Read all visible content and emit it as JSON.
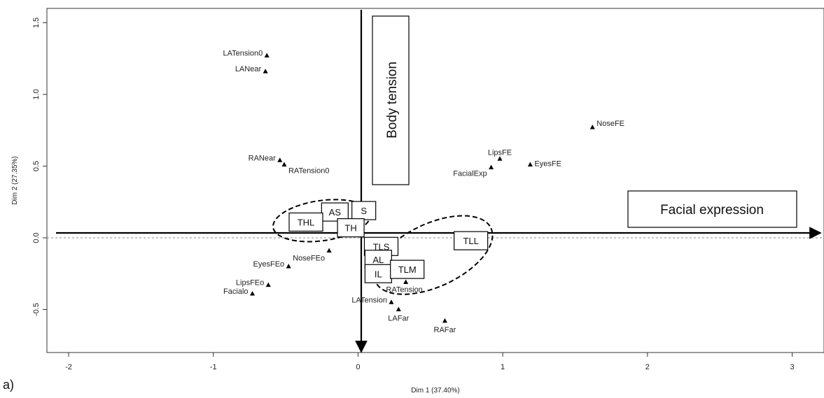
{
  "chart_data": {
    "type": "scatter",
    "xlabel": "Dim 1 (37.40%)",
    "ylabel": "Dim 2 (27.35%)",
    "xlim": [
      -2.15,
      3.22
    ],
    "ylim": [
      -0.8,
      1.6
    ],
    "xticks": [
      -2,
      -1,
      0,
      1,
      2,
      3
    ],
    "yticks": [
      -0.5,
      0.0,
      0.5,
      1.0,
      1.5
    ],
    "xtick_labels": [
      "-2",
      "-1",
      "0",
      "1",
      "2",
      "3"
    ],
    "ytick_labels": [
      "-0.5",
      "0.0",
      "0.5",
      "1.0",
      "1.5"
    ],
    "panel_label": "a)",
    "points": [
      {
        "label": "LATension0",
        "x": -0.63,
        "y": 1.27
      },
      {
        "label": "LANear",
        "x": -0.64,
        "y": 1.16
      },
      {
        "label": "RANear",
        "x": -0.54,
        "y": 0.54
      },
      {
        "label": "RATension0",
        "x": -0.51,
        "y": 0.51
      },
      {
        "label": "NoseFE",
        "x": 1.62,
        "y": 0.77
      },
      {
        "label": "LipsFE",
        "x": 0.98,
        "y": 0.55
      },
      {
        "label": "EyesFE",
        "x": 1.19,
        "y": 0.51
      },
      {
        "label": "FacialExp",
        "x": 0.92,
        "y": 0.49
      },
      {
        "label": "NoseFEo",
        "x": -0.2,
        "y": -0.09
      },
      {
        "label": "EyesFEo",
        "x": -0.48,
        "y": -0.2
      },
      {
        "label": "LipsFEo",
        "x": -0.62,
        "y": -0.33
      },
      {
        "label": "Facialo",
        "x": -0.73,
        "y": -0.39
      },
      {
        "label": "RATension",
        "x": 0.33,
        "y": -0.31
      },
      {
        "label": "LATension",
        "x": 0.23,
        "y": -0.45
      },
      {
        "label": "LAFar",
        "x": 0.28,
        "y": -0.5
      },
      {
        "label": "RAFar",
        "x": 0.6,
        "y": -0.58
      }
    ],
    "boxes": [
      {
        "label": "AS",
        "x": -0.16,
        "y": 0.18
      },
      {
        "label": "S",
        "x": 0.04,
        "y": 0.19
      },
      {
        "label": "THL",
        "x": -0.36,
        "y": 0.11
      },
      {
        "label": "TH",
        "x": -0.05,
        "y": 0.07
      },
      {
        "label": "TLL",
        "x": 0.78,
        "y": -0.02
      },
      {
        "label": "TLS",
        "x": 0.16,
        "y": -0.06
      },
      {
        "label": "AL",
        "x": 0.14,
        "y": -0.15
      },
      {
        "label": "IL",
        "x": 0.14,
        "y": -0.25
      },
      {
        "label": "TLM",
        "x": 0.34,
        "y": -0.22
      }
    ],
    "ellipses": [
      {
        "cx": -0.25,
        "cy": 0.12,
        "rx": 0.34,
        "ry": 0.14,
        "rotate": -8
      },
      {
        "cx": 0.52,
        "cy": -0.12,
        "rx": 0.44,
        "ry": 0.22,
        "rotate": -25
      }
    ],
    "annotations": {
      "vertical": "Body tension",
      "horizontal": "Facial expression"
    }
  }
}
